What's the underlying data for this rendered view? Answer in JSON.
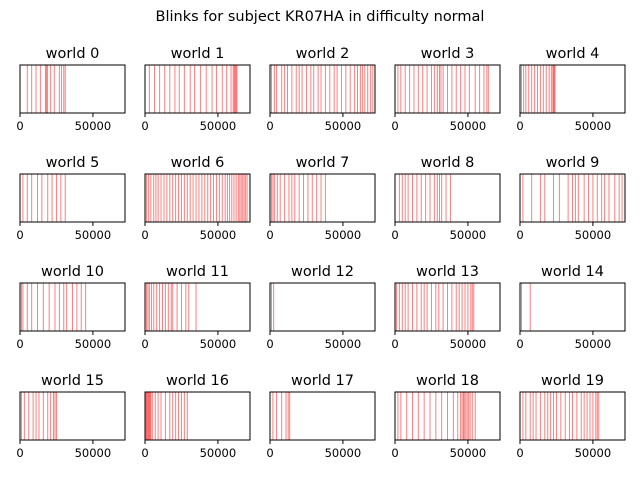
{
  "chart_data": {
    "type": "event-raster",
    "title": "Blinks for subject KR07HA in difficulty normal",
    "xlim": [
      0,
      72000
    ],
    "xticks": [
      {
        "value": 0,
        "label": "0"
      },
      {
        "value": 50000,
        "label": "50000"
      }
    ],
    "yticks_visible": false,
    "grid": false,
    "line_color": "#ff0000",
    "line_alpha": 0.5,
    "layout": {
      "rows": 4,
      "cols": 5
    },
    "panels": [
      {
        "title": "world 0",
        "events": [
          5000,
          8000,
          11000,
          14000,
          17500,
          18200,
          18800,
          21000,
          23500,
          27000,
          28500,
          30000,
          31000
        ]
      },
      {
        "title": "world 1",
        "events": [
          3000,
          6500,
          10000,
          13500,
          17000,
          20500,
          23500,
          27000,
          31000,
          34000,
          38000,
          42000,
          46000,
          49000,
          53000,
          56000,
          59000,
          60500,
          61200,
          61800,
          62400,
          63000
        ]
      },
      {
        "title": "world 2",
        "events": [
          1000,
          3000,
          4500,
          8000,
          10000,
          12000,
          15000,
          18000,
          20000,
          22000,
          25000,
          28000,
          30000,
          33000,
          35000,
          38000,
          41000,
          44000,
          46000,
          49000,
          52000,
          55000,
          58000,
          60000,
          62000,
          63500,
          65000,
          67000,
          69000,
          70500
        ]
      },
      {
        "title": "world 3",
        "events": [
          2000,
          4000,
          7000,
          10000,
          13000,
          16000,
          19000,
          22000,
          25000,
          27000,
          29000,
          30500,
          31500,
          33000,
          36000,
          39000,
          42000,
          45000,
          48000,
          51000,
          55000,
          58000,
          61000,
          63000,
          64000
        ]
      },
      {
        "title": "world 4",
        "events": [
          1000,
          2500,
          4000,
          6000,
          8000,
          10000,
          12000,
          14000,
          16000,
          18000,
          20000,
          21500,
          22500,
          23000,
          23500,
          24000
        ]
      },
      {
        "title": "world 5",
        "events": [
          2000,
          5000,
          8000,
          12000,
          15000,
          19000,
          22000,
          25000,
          28000,
          31000
        ]
      },
      {
        "title": "world 6",
        "events": [
          1000,
          2500,
          4000,
          6000,
          7500,
          9000,
          11000,
          13000,
          15000,
          17000,
          19000,
          21000,
          23000,
          25000,
          27000,
          29000,
          31000,
          33000,
          35000,
          37000,
          39000,
          41000,
          43000,
          45000,
          47000,
          49000,
          51000,
          53000,
          55000,
          56500,
          58000,
          59500,
          61000,
          62500,
          64000,
          65000,
          66000,
          67000,
          68000,
          69000,
          70000
        ]
      },
      {
        "title": "world 7",
        "events": [
          1000,
          2000,
          3000,
          5000,
          7000,
          10000,
          13000,
          15000,
          17000,
          20000,
          23000,
          26000,
          29000,
          32000,
          35000,
          38000
        ]
      },
      {
        "title": "world 8",
        "events": [
          3000,
          5000,
          7000,
          9000,
          12000,
          15000,
          18000,
          21000,
          24000,
          27000,
          29000,
          30500,
          32000,
          35000,
          38000
        ]
      },
      {
        "title": "world 9",
        "events": [
          2000,
          8000,
          14000,
          17000,
          23000,
          27000,
          33000,
          36000,
          38000,
          40000,
          44000,
          47000,
          50000,
          53000,
          56000,
          58000,
          61000,
          65000,
          68000,
          70000
        ]
      },
      {
        "title": "world 10",
        "events": [
          1000,
          2000,
          5000,
          8000,
          12000,
          16000,
          20000,
          24000,
          27000,
          30000,
          32000,
          36000,
          39000,
          42000,
          45000
        ]
      },
      {
        "title": "world 11",
        "events": [
          1000,
          2000,
          3000,
          4500,
          6000,
          8000,
          10000,
          12000,
          14000,
          16000,
          18000,
          19000,
          22000,
          25000,
          28000,
          30000,
          35000
        ]
      },
      {
        "title": "world 12",
        "events": [
          1000,
          2500
        ]
      },
      {
        "title": "world 13",
        "events": [
          1000,
          3000,
          5000,
          7000,
          9000,
          12000,
          15000,
          18000,
          20000,
          22000,
          25000,
          28000,
          30000,
          33000,
          36000,
          39000,
          42000,
          44000,
          46000,
          48000,
          50000,
          52000,
          53000,
          54000
        ]
      },
      {
        "title": "world 14",
        "events": [
          1000,
          7000
        ]
      },
      {
        "title": "world 15",
        "events": [
          1000,
          3000,
          6000,
          9000,
          11000,
          13000,
          16000,
          19000,
          21000,
          23000,
          24000,
          25000
        ]
      },
      {
        "title": "world 16",
        "events": [
          500,
          1000,
          1500,
          2000,
          2500,
          3000,
          3500,
          4000,
          5000,
          7000,
          9000,
          11000,
          14000,
          17000,
          19000,
          21000,
          23000,
          25000,
          27000,
          29000
        ]
      },
      {
        "title": "world 17",
        "events": [
          2000,
          4500,
          8000,
          11000,
          12500,
          13500
        ]
      },
      {
        "title": "world 18",
        "events": [
          2000,
          4000,
          8000,
          12000,
          16000,
          20000,
          24000,
          28000,
          32000,
          36000,
          40000,
          43000,
          45000,
          46000,
          47000,
          47500,
          48500,
          49500,
          50500,
          51500,
          53000,
          55000
        ]
      },
      {
        "title": "world 19",
        "events": [
          2000,
          4000,
          7000,
          9000,
          11000,
          14000,
          17000,
          19000,
          21000,
          23000,
          25000,
          28000,
          31000,
          34000,
          36000,
          39000,
          42000,
          44000,
          46000,
          48000,
          50000,
          52000,
          53000,
          54000
        ]
      }
    ]
  }
}
